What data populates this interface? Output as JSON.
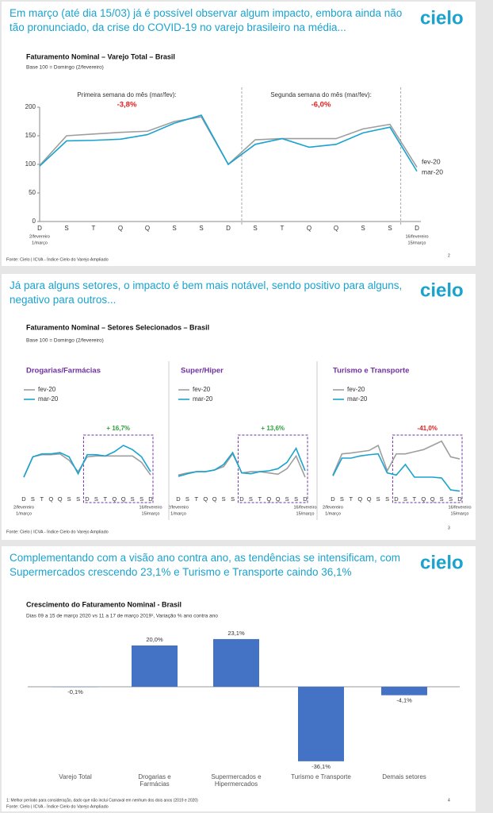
{
  "slides": [
    {
      "headline": "Em março (até dia 15/03) já é possível observar algum impacto, embora ainda não tão pronunciado, da crise do COVID-19 no varejo brasileiro na média...",
      "logo": "cielo",
      "source": "Fonte: Cielo | ICVA - Índice Cielo do Varejo Ampliado",
      "page": "2"
    },
    {
      "headline": "Já para alguns setores, o impacto é bem mais notável, sendo positivo para alguns, negativo para outros...",
      "logo": "cielo",
      "title": "Faturamento Nominal – Setores Selecionados – Brasil",
      "subtitle": "Base 100 = Domingo (2/fevereiro)",
      "source": "Fonte: Cielo | ICVA - Índice Cielo do Varejo Ampliado",
      "page": "3"
    },
    {
      "headline": "Complementando com a visão ano contra ano, as tendências se intensificam, com Supermercados crescendo 23,1% e Turismo e Transporte caindo 36,1%",
      "logo": "cielo",
      "footnote": "1: Melhor período para consideração, dado que não inclui Carnaval em nenhum dos dois anos (2019 e 2020)",
      "source": "Fonte: Cielo | ICVA - Índice Cielo do Varejo Ampliado",
      "page": "4"
    }
  ],
  "chart_data": [
    {
      "type": "line",
      "title": "Faturamento Nominal – Varejo Total – Brasil",
      "subtitle": "Base 100 = Domingo (2/fevereiro)",
      "categories": [
        "D",
        "S",
        "T",
        "Q",
        "Q",
        "S",
        "S",
        "D",
        "S",
        "T",
        "Q",
        "Q",
        "S",
        "S",
        "D"
      ],
      "date_labels": {
        "first": [
          "2/fevereiro",
          "1/março"
        ],
        "last": [
          "16/fevereiro",
          "15/março"
        ]
      },
      "series": [
        {
          "name": "fev-20",
          "color": "#9e9e9e",
          "values": [
            98,
            150,
            153,
            156,
            158,
            175,
            183,
            100,
            143,
            145,
            145,
            145,
            162,
            170,
            95
          ]
        },
        {
          "name": "mar-20",
          "color": "#1aa3cf",
          "values": [
            97,
            141,
            142,
            144,
            152,
            172,
            186,
            100,
            135,
            145,
            130,
            135,
            155,
            165,
            88
          ]
        }
      ],
      "ylim": [
        0,
        200
      ],
      "yticks": [
        0,
        50,
        100,
        150,
        200
      ],
      "annotations": [
        {
          "text": "Primeira semana do mês (mar/fev):",
          "label": "-3,8%"
        },
        {
          "text": "Segunda semana do mês (mar/fev):",
          "label": "-6,0%"
        }
      ]
    },
    {
      "type": "line",
      "title": "Drogarias/Farmácias",
      "annotation": "+ 16,7%",
      "annotation_color": "#2e9e3a",
      "categories": [
        "D",
        "S",
        "T",
        "Q",
        "Q",
        "S",
        "S",
        "D",
        "S",
        "T",
        "Q",
        "Q",
        "S",
        "S",
        "D"
      ],
      "date_labels": {
        "first": [
          "2/fevereiro",
          "1/março"
        ],
        "last": [
          "16/fevereiro",
          "15/março"
        ]
      },
      "series": [
        {
          "name": "fev-20",
          "color": "#9e9e9e",
          "values": [
            95,
            143,
            148,
            148,
            150,
            135,
            108,
            143,
            145,
            145,
            145,
            145,
            145,
            130,
            100
          ]
        },
        {
          "name": "mar-20",
          "color": "#1aa3cf",
          "values": [
            95,
            143,
            150,
            150,
            153,
            143,
            103,
            148,
            148,
            145,
            155,
            170,
            160,
            143,
            108
          ]
        }
      ],
      "ylim": [
        50,
        200
      ]
    },
    {
      "type": "line",
      "title": "Super/Hiper",
      "annotation": "+ 13,6%",
      "annotation_color": "#2e9e3a",
      "categories": [
        "D",
        "S",
        "T",
        "Q",
        "Q",
        "S",
        "S",
        "D",
        "S",
        "T",
        "Q",
        "Q",
        "S",
        "S",
        "D"
      ],
      "date_labels": {
        "first": [
          "2/fevereiro",
          "1/março"
        ],
        "last": [
          "16/fevereiro",
          "15/março"
        ]
      },
      "series": [
        {
          "name": "fev-20",
          "color": "#9e9e9e",
          "values": [
            100,
            105,
            108,
            108,
            112,
            120,
            150,
            105,
            108,
            108,
            105,
            102,
            115,
            145,
            95
          ]
        },
        {
          "name": "mar-20",
          "color": "#1aa3cf",
          "values": [
            97,
            103,
            108,
            108,
            112,
            125,
            153,
            105,
            103,
            108,
            110,
            115,
            130,
            163,
            110
          ]
        }
      ],
      "ylim": [
        50,
        200
      ]
    },
    {
      "type": "line",
      "title": "Turismo e Transporte",
      "annotation": "-41,0%",
      "annotation_color": "#e02020",
      "categories": [
        "D",
        "S",
        "T",
        "Q",
        "Q",
        "S",
        "S",
        "D",
        "S",
        "T",
        "Q",
        "Q",
        "S",
        "S",
        "D"
      ],
      "date_labels": {
        "first": [
          "2/fevereiro",
          "1/março"
        ],
        "last": [
          "16/fevereiro",
          "15/março"
        ]
      },
      "series": [
        {
          "name": "fev-20",
          "color": "#9e9e9e",
          "values": [
            100,
            150,
            152,
            155,
            158,
            170,
            110,
            150,
            150,
            155,
            160,
            170,
            180,
            143,
            138
          ]
        },
        {
          "name": "mar-20",
          "color": "#1aa3cf",
          "values": [
            98,
            140,
            140,
            145,
            148,
            150,
            105,
            100,
            125,
            95,
            95,
            95,
            93,
            65,
            62
          ]
        }
      ],
      "ylim": [
        50,
        200
      ]
    },
    {
      "type": "bar",
      "title": "Crescimento do Faturamento Nominal - Brasil",
      "subtitle": "Dias 09 a 15 de março 2020 vs 11 a 17 de março 2019¹,  Variação % ano contra ano",
      "categories": [
        "Varejo Total",
        "Drogarias e Farmácias",
        "Supermercados e Hipermercados",
        "Turismo e Transporte",
        "Demais setores"
      ],
      "values": [
        -0.1,
        20.0,
        23.1,
        -36.1,
        -4.1
      ],
      "value_labels": [
        "-0,1%",
        "20,0%",
        "23,1%",
        "-36,1%",
        "-4,1%"
      ],
      "color": "#4472c4",
      "ylim": [
        -40,
        25
      ]
    }
  ]
}
